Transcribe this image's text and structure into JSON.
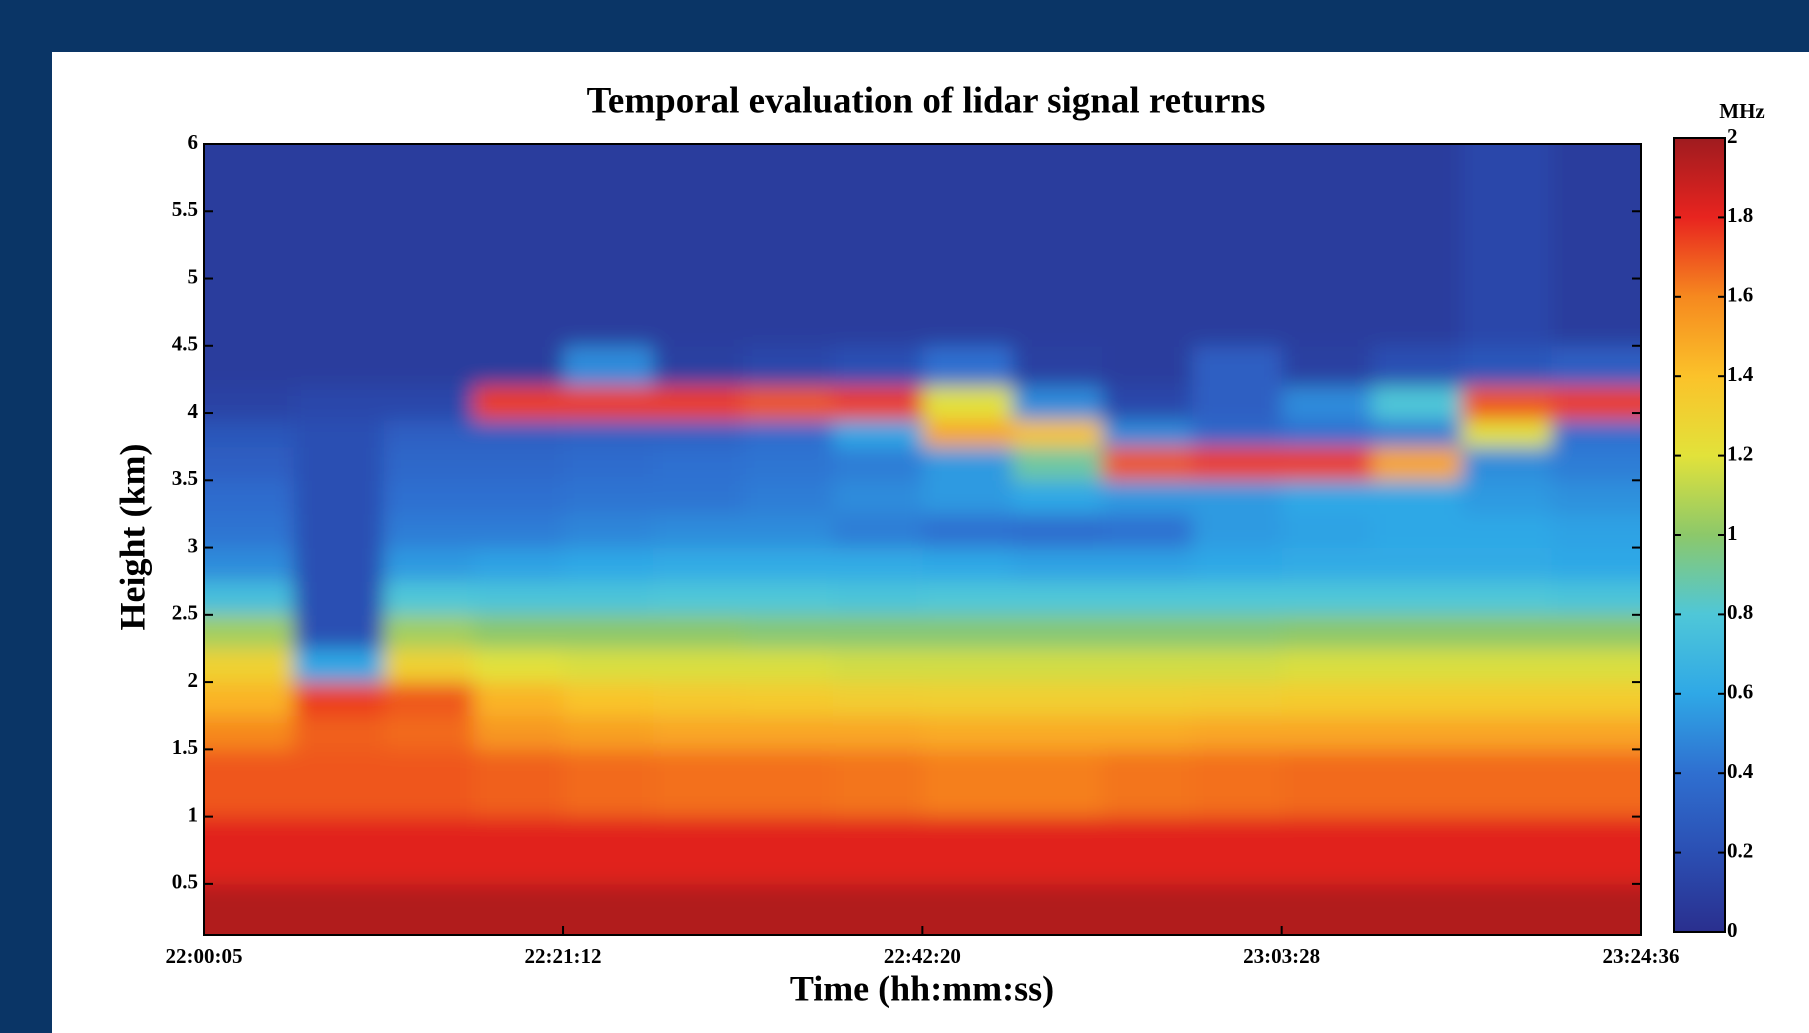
{
  "chart_data": {
    "type": "heatmap",
    "title": "Temporal evaluation of lidar signal returns",
    "x_label": "Time (hh:mm:ss)",
    "y_label": "Height (km)",
    "colorbar_label": "MHz",
    "xlim": [
      79205,
      84276
    ],
    "xticks": [
      {
        "value": 79205,
        "label": "22:00:05"
      },
      {
        "value": 80472,
        "label": "22:21:12"
      },
      {
        "value": 81740,
        "label": "22:42:20"
      },
      {
        "value": 83008,
        "label": "23:03:28"
      },
      {
        "value": 84276,
        "label": "23:24:36"
      }
    ],
    "ylim": [
      0.12,
      6
    ],
    "yticks": [
      0.5,
      1,
      1.5,
      2,
      2.5,
      3,
      3.5,
      4,
      4.5,
      5,
      5.5,
      6
    ],
    "zlim": [
      0,
      2
    ],
    "zticks": [
      0,
      0.2,
      0.4,
      0.6,
      0.8,
      1,
      1.2,
      1.4,
      1.6,
      1.8,
      2
    ],
    "colormap": [
      "#2a2f8e",
      "#2b4fb3",
      "#2f6fd0",
      "#2fa8e6",
      "#4fc7d8",
      "#8cc86a",
      "#e2e23a",
      "#fbc22a",
      "#f6891f",
      "#e8241f",
      "#9f1b1f"
    ],
    "xbins": [
      79205,
      79522,
      79839,
      80156,
      80473,
      80790,
      81107,
      81424,
      81741,
      82058,
      82375,
      82692,
      83009,
      83326,
      83643,
      83960,
      84276
    ],
    "ybins": [
      0.12,
      0.5,
      1,
      1.5,
      1.75,
      2,
      2.25,
      2.5,
      2.75,
      3,
      3.25,
      3.5,
      3.75,
      3.95,
      4.2,
      4.5,
      6
    ],
    "z": [
      [
        1.95,
        1.95,
        1.95,
        1.95,
        1.95,
        1.95,
        1.95,
        1.95,
        1.95,
        1.95,
        1.95,
        1.95,
        1.95,
        1.95,
        1.95,
        1.95
      ],
      [
        1.82,
        1.82,
        1.82,
        1.82,
        1.82,
        1.82,
        1.82,
        1.82,
        1.82,
        1.82,
        1.82,
        1.82,
        1.82,
        1.82,
        1.82,
        1.82
      ],
      [
        1.7,
        1.7,
        1.7,
        1.68,
        1.66,
        1.65,
        1.65,
        1.64,
        1.62,
        1.62,
        1.64,
        1.65,
        1.66,
        1.66,
        1.66,
        1.66
      ],
      [
        1.6,
        1.68,
        1.66,
        1.55,
        1.52,
        1.5,
        1.5,
        1.5,
        1.48,
        1.48,
        1.48,
        1.5,
        1.5,
        1.5,
        1.5,
        1.5
      ],
      [
        1.45,
        1.75,
        1.7,
        1.45,
        1.38,
        1.36,
        1.35,
        1.33,
        1.32,
        1.32,
        1.32,
        1.33,
        1.34,
        1.34,
        1.34,
        1.34
      ],
      [
        1.3,
        0.6,
        1.3,
        1.2,
        1.18,
        1.18,
        1.18,
        1.16,
        1.16,
        1.16,
        1.16,
        1.16,
        1.18,
        1.18,
        1.18,
        1.18
      ],
      [
        1.05,
        0.2,
        1.05,
        1,
        1,
        1,
        0.98,
        0.98,
        0.98,
        0.98,
        0.98,
        0.98,
        1,
        1,
        1,
        1
      ],
      [
        0.75,
        0.2,
        0.8,
        0.78,
        0.78,
        0.8,
        0.8,
        0.78,
        0.8,
        0.8,
        0.8,
        0.8,
        0.8,
        0.8,
        0.8,
        0.78
      ],
      [
        0.5,
        0.2,
        0.55,
        0.58,
        0.6,
        0.62,
        0.62,
        0.62,
        0.6,
        0.58,
        0.58,
        0.6,
        0.62,
        0.62,
        0.62,
        0.6
      ],
      [
        0.42,
        0.2,
        0.45,
        0.45,
        0.48,
        0.5,
        0.5,
        0.45,
        0.4,
        0.38,
        0.4,
        0.55,
        0.58,
        0.6,
        0.6,
        0.58
      ],
      [
        0.38,
        0.2,
        0.4,
        0.4,
        0.42,
        0.42,
        0.45,
        0.5,
        0.55,
        0.6,
        0.55,
        0.55,
        0.6,
        0.6,
        0.55,
        0.52
      ],
      [
        0.3,
        0.2,
        0.35,
        0.35,
        0.38,
        0.4,
        0.42,
        0.45,
        0.55,
        0.9,
        1.7,
        1.75,
        1.75,
        1.5,
        0.5,
        0.45
      ],
      [
        0.25,
        0.2,
        0.3,
        0.3,
        0.32,
        0.32,
        0.38,
        0.6,
        1.5,
        1.4,
        0.5,
        0.35,
        0.4,
        0.45,
        1.2,
        0.4
      ],
      [
        0.12,
        0.15,
        0.15,
        1.75,
        1.75,
        1.75,
        1.7,
        1.75,
        1.2,
        0.5,
        0.15,
        0.3,
        0.5,
        0.8,
        1.7,
        1.75
      ],
      [
        0.08,
        0.08,
        0.08,
        0.08,
        0.5,
        0.1,
        0.15,
        0.2,
        0.4,
        0.1,
        0.08,
        0.3,
        0.1,
        0.2,
        0.25,
        0.3
      ],
      [
        0.08,
        0.08,
        0.08,
        0.08,
        0.08,
        0.08,
        0.08,
        0.08,
        0.08,
        0.08,
        0.08,
        0.08,
        0.08,
        0.08,
        0.15,
        0.08
      ]
    ]
  }
}
